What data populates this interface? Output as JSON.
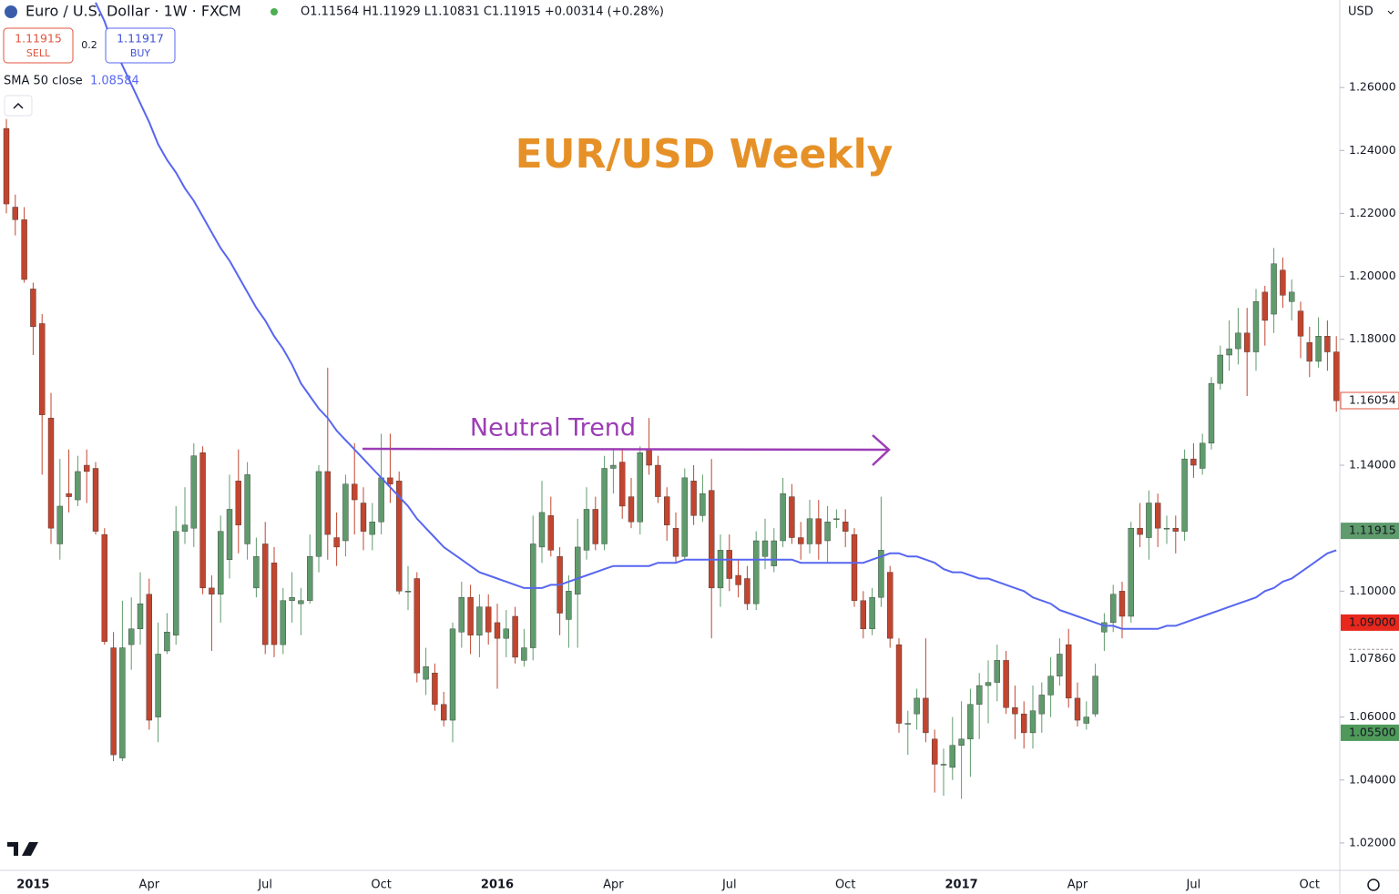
{
  "chart_data": {
    "type": "candlestick",
    "symbol": "Euro / U.S. Dollar · 1W · FXCM",
    "ohlc_text": "O1.11564 H1.11929 L1.10831 C1.11915 +0.00314 (+0.28%)",
    "trade": {
      "sell_price": 1.11915,
      "sell_label": "SELL",
      "spread": 0.2,
      "buy_price": 1.11917,
      "buy_label": "BUY"
    },
    "currency": "USD",
    "title": "EUR/USD Weekly",
    "annotation": "Neutral Trend",
    "up_color": "#5f9b6c",
    "down_color": "#c2452f",
    "grid": false,
    "ylim": [
      1.0113,
      1.2878
    ],
    "yticks": [
      {
        "value": 1.02,
        "label": "1.02000"
      },
      {
        "value": 1.04,
        "label": "1.04000"
      },
      {
        "value": 1.06,
        "label": "1.06000"
      },
      {
        "value": 1.1,
        "label": "1.10000"
      },
      {
        "value": 1.14,
        "label": "1.14000"
      },
      {
        "value": 1.18,
        "label": "1.18000"
      },
      {
        "value": 1.2,
        "label": "1.20000"
      },
      {
        "value": 1.22,
        "label": "1.22000"
      },
      {
        "value": 1.24,
        "label": "1.24000"
      },
      {
        "value": 1.26,
        "label": "1.26000"
      }
    ],
    "price_labels": [
      {
        "value": 1.16054,
        "label": "1.16054",
        "style": "outline",
        "color": "#e0533c"
      },
      {
        "value": 1.11915,
        "label": "1.11915",
        "style": "fill",
        "color": "#5f9b6c"
      },
      {
        "value": 1.09,
        "label": "1.09000",
        "style": "fill",
        "color": "#e8281d"
      },
      {
        "value": 1.0786,
        "label": "1.07860",
        "style": "plain",
        "color": "#131722"
      },
      {
        "value": 1.055,
        "label": "1.05500",
        "style": "fill",
        "color": "#4f9a5a"
      }
    ],
    "categories": [
      null,
      null,
      null,
      "2015",
      null,
      null,
      null,
      null,
      null,
      null,
      null,
      null,
      null,
      null,
      null,
      null,
      "Apr",
      null,
      null,
      null,
      null,
      null,
      null,
      null,
      null,
      null,
      null,
      null,
      null,
      "Jul",
      null,
      null,
      null,
      null,
      null,
      null,
      null,
      null,
      null,
      null,
      null,
      null,
      "Oct",
      null,
      null,
      null,
      null,
      null,
      null,
      null,
      null,
      null,
      null,
      null,
      null,
      "2016",
      null,
      null,
      null,
      null,
      null,
      null,
      null,
      null,
      null,
      null,
      null,
      null,
      "Apr",
      null,
      null,
      null,
      null,
      null,
      null,
      null,
      null,
      null,
      null,
      null,
      null,
      "Jul",
      null,
      null,
      null,
      null,
      null,
      null,
      null,
      null,
      null,
      null,
      null,
      null,
      "Oct",
      null,
      null,
      null,
      null,
      null,
      null,
      null,
      null,
      null,
      null,
      null,
      null,
      "2017",
      null,
      null,
      null,
      null,
      null,
      null,
      null,
      null,
      null,
      null,
      null,
      null,
      "Apr",
      null,
      null,
      null,
      null,
      null,
      null,
      null,
      null,
      null,
      null,
      null,
      null,
      "Jul",
      null,
      null,
      null,
      null,
      null,
      null,
      null,
      null,
      null,
      null,
      null,
      null,
      "Oct",
      null,
      null,
      null
    ],
    "open": [
      1.247,
      1.222,
      1.218,
      1.196,
      1.185,
      1.155,
      1.115,
      1.131,
      1.129,
      1.14,
      1.139,
      1.118,
      1.082,
      1.047,
      1.083,
      1.088,
      1.099,
      1.06,
      1.081,
      1.086,
      1.119,
      1.12,
      1.144,
      1.101,
      1.099,
      1.11,
      1.135,
      1.115,
      1.101,
      1.115,
      1.109,
      1.083,
      1.097,
      1.096,
      1.097,
      1.111,
      1.138,
      1.117,
      1.116,
      1.134,
      1.128,
      1.118,
      1.122,
      1.136,
      1.135,
      1.1,
      1.104,
      1.072,
      1.074,
      1.064,
      1.059,
      1.087,
      1.098,
      1.086,
      1.095,
      1.09,
      1.085,
      1.092,
      1.078,
      1.082,
      1.114,
      1.124,
      1.111,
      1.091,
      1.099,
      1.113,
      1.126,
      1.115,
      1.139,
      1.141,
      1.13,
      1.122,
      1.145,
      1.14,
      1.13,
      1.12,
      1.111,
      1.135,
      1.124,
      1.132,
      1.101,
      1.113,
      1.105,
      1.104,
      1.096,
      1.111,
      1.108,
      1.116,
      1.13,
      1.117,
      1.115,
      1.123,
      1.116,
      1.123,
      1.122,
      1.118,
      1.097,
      1.088,
      1.098,
      1.106,
      1.083,
      1.058,
      1.061,
      1.066,
      1.053,
      1.045,
      1.044,
      1.051,
      1.053,
      1.064,
      1.07,
      1.071,
      1.078,
      1.063,
      1.061,
      1.055,
      1.061,
      1.067,
      1.073,
      1.083,
      1.066,
      1.058,
      1.061,
      1.087,
      1.09,
      1.1,
      1.092,
      1.12,
      1.117,
      1.128,
      1.12,
      1.12,
      1.119,
      1.142,
      1.139,
      1.147,
      1.166,
      1.175,
      1.177,
      1.182,
      1.176,
      1.195,
      1.188,
      1.202,
      1.192,
      1.189,
      1.179,
      1.173,
      1.181,
      1.176
    ],
    "high": [
      1.25,
      1.226,
      1.222,
      1.198,
      1.188,
      1.163,
      1.142,
      1.145,
      1.143,
      1.145,
      1.141,
      1.12,
      1.087,
      1.097,
      1.098,
      1.106,
      1.104,
      1.09,
      1.093,
      1.127,
      1.133,
      1.147,
      1.146,
      1.105,
      1.124,
      1.137,
      1.145,
      1.141,
      1.117,
      1.122,
      1.114,
      1.101,
      1.106,
      1.101,
      1.118,
      1.14,
      1.171,
      1.125,
      1.137,
      1.147,
      1.133,
      1.128,
      1.15,
      1.15,
      1.138,
      1.108,
      1.106,
      1.082,
      1.077,
      1.068,
      1.09,
      1.103,
      1.102,
      1.099,
      1.099,
      1.096,
      1.094,
      1.095,
      1.088,
      1.124,
      1.135,
      1.13,
      1.114,
      1.105,
      1.123,
      1.133,
      1.13,
      1.143,
      1.145,
      1.145,
      1.136,
      1.146,
      1.155,
      1.143,
      1.133,
      1.125,
      1.139,
      1.14,
      1.137,
      1.142,
      1.118,
      1.118,
      1.11,
      1.108,
      1.119,
      1.123,
      1.12,
      1.136,
      1.134,
      1.122,
      1.129,
      1.129,
      1.127,
      1.126,
      1.126,
      1.12,
      1.1,
      1.101,
      1.13,
      1.108,
      1.085,
      1.062,
      1.069,
      1.085,
      1.056,
      1.05,
      1.06,
      1.065,
      1.069,
      1.074,
      1.078,
      1.083,
      1.081,
      1.07,
      1.065,
      1.07,
      1.071,
      1.079,
      1.085,
      1.088,
      1.071,
      1.065,
      1.077,
      1.093,
      1.102,
      1.103,
      1.122,
      1.128,
      1.132,
      1.131,
      1.124,
      1.124,
      1.145,
      1.147,
      1.15,
      1.168,
      1.178,
      1.186,
      1.19,
      1.19,
      1.196,
      1.197,
      1.209,
      1.206,
      1.199,
      1.192,
      1.184,
      1.187,
      1.186,
      1.181
    ],
    "low": [
      1.22,
      1.213,
      1.198,
      1.175,
      1.137,
      1.115,
      1.11,
      1.125,
      1.127,
      1.128,
      1.118,
      1.083,
      1.046,
      1.046,
      1.075,
      1.083,
      1.056,
      1.052,
      1.08,
      1.083,
      1.115,
      1.114,
      1.099,
      1.081,
      1.09,
      1.104,
      1.112,
      1.11,
      1.098,
      1.08,
      1.079,
      1.08,
      1.09,
      1.086,
      1.096,
      1.106,
      1.11,
      1.108,
      1.111,
      1.118,
      1.113,
      1.113,
      1.118,
      1.128,
      1.099,
      1.094,
      1.071,
      1.067,
      1.062,
      1.057,
      1.052,
      1.082,
      1.08,
      1.079,
      1.083,
      1.069,
      1.079,
      1.077,
      1.076,
      1.078,
      1.109,
      1.111,
      1.086,
      1.082,
      1.082,
      1.11,
      1.113,
      1.113,
      1.131,
      1.123,
      1.12,
      1.118,
      1.137,
      1.128,
      1.116,
      1.109,
      1.11,
      1.121,
      1.122,
      1.085,
      1.095,
      1.1,
      1.098,
      1.094,
      1.094,
      1.107,
      1.106,
      1.114,
      1.115,
      1.11,
      1.112,
      1.11,
      1.109,
      1.12,
      1.114,
      1.095,
      1.085,
      1.086,
      1.095,
      1.082,
      1.055,
      1.048,
      1.056,
      1.052,
      1.036,
      1.035,
      1.04,
      1.034,
      1.041,
      1.053,
      1.058,
      1.065,
      1.061,
      1.053,
      1.05,
      1.05,
      1.055,
      1.06,
      1.07,
      1.063,
      1.057,
      1.056,
      1.06,
      1.081,
      1.087,
      1.085,
      1.09,
      1.114,
      1.11,
      1.114,
      1.115,
      1.112,
      1.116,
      1.136,
      1.137,
      1.145,
      1.164,
      1.17,
      1.172,
      1.162,
      1.17,
      1.178,
      1.182,
      1.19,
      1.186,
      1.174,
      1.168,
      1.171,
      1.17,
      1.157
    ],
    "close": [
      1.223,
      1.218,
      1.199,
      1.184,
      1.156,
      1.12,
      1.127,
      1.13,
      1.138,
      1.138,
      1.119,
      1.084,
      1.048,
      1.082,
      1.088,
      1.096,
      1.059,
      1.08,
      1.087,
      1.119,
      1.121,
      1.143,
      1.101,
      1.099,
      1.119,
      1.126,
      1.121,
      1.137,
      1.111,
      1.083,
      1.083,
      1.097,
      1.098,
      1.097,
      1.111,
      1.138,
      1.118,
      1.114,
      1.134,
      1.129,
      1.119,
      1.122,
      1.136,
      1.134,
      1.1,
      1.1,
      1.074,
      1.076,
      1.064,
      1.059,
      1.088,
      1.098,
      1.086,
      1.095,
      1.087,
      1.085,
      1.088,
      1.079,
      1.082,
      1.115,
      1.125,
      1.113,
      1.093,
      1.1,
      1.114,
      1.126,
      1.115,
      1.139,
      1.14,
      1.127,
      1.122,
      1.144,
      1.14,
      1.13,
      1.121,
      1.111,
      1.136,
      1.124,
      1.131,
      1.101,
      1.113,
      1.104,
      1.102,
      1.096,
      1.116,
      1.116,
      1.116,
      1.131,
      1.117,
      1.115,
      1.123,
      1.115,
      1.122,
      1.123,
      1.119,
      1.097,
      1.088,
      1.098,
      1.113,
      1.085,
      1.058,
      1.058,
      1.066,
      1.055,
      1.045,
      1.045,
      1.051,
      1.053,
      1.064,
      1.07,
      1.071,
      1.078,
      1.063,
      1.061,
      1.055,
      1.062,
      1.067,
      1.073,
      1.08,
      1.066,
      1.059,
      1.06,
      1.073,
      1.09,
      1.099,
      1.092,
      1.12,
      1.118,
      1.128,
      1.12,
      1.12,
      1.119,
      1.142,
      1.14,
      1.147,
      1.166,
      1.175,
      1.177,
      1.182,
      1.176,
      1.192,
      1.186,
      1.204,
      1.194,
      1.195,
      1.181,
      1.173,
      1.181,
      1.176,
      1.1605
    ],
    "indicator": {
      "name": "SMA 50 close",
      "value": 1.08584,
      "color": "#5766f0",
      "values": [
        null,
        null,
        null,
        null,
        null,
        null,
        null,
        null,
        null,
        null,
        1.287,
        1.281,
        1.273,
        1.267,
        1.261,
        1.255,
        1.249,
        1.242,
        1.237,
        1.233,
        1.228,
        1.224,
        1.219,
        1.214,
        1.209,
        1.205,
        1.2,
        1.195,
        1.19,
        1.186,
        1.181,
        1.177,
        1.172,
        1.166,
        1.162,
        1.158,
        1.155,
        1.151,
        1.148,
        1.145,
        1.142,
        1.139,
        1.136,
        1.133,
        1.13,
        1.127,
        1.123,
        1.12,
        1.117,
        1.114,
        1.112,
        1.11,
        1.108,
        1.106,
        1.105,
        1.104,
        1.103,
        1.102,
        1.101,
        1.101,
        1.101,
        1.102,
        1.102,
        1.103,
        1.104,
        1.105,
        1.106,
        1.107,
        1.108,
        1.108,
        1.108,
        1.108,
        1.108,
        1.109,
        1.109,
        1.109,
        1.11,
        1.11,
        1.11,
        1.11,
        1.11,
        1.11,
        1.11,
        1.11,
        1.11,
        1.11,
        1.11,
        1.11,
        1.11,
        1.109,
        1.109,
        1.109,
        1.109,
        1.109,
        1.109,
        1.109,
        1.109,
        1.11,
        1.111,
        1.112,
        1.112,
        1.111,
        1.111,
        1.11,
        1.109,
        1.107,
        1.106,
        1.106,
        1.105,
        1.104,
        1.104,
        1.103,
        1.102,
        1.101,
        1.1,
        1.098,
        1.097,
        1.096,
        1.094,
        1.093,
        1.092,
        1.091,
        1.09,
        1.089,
        1.089,
        1.088,
        1.088,
        1.088,
        1.088,
        1.088,
        1.089,
        1.089,
        1.09,
        1.091,
        1.092,
        1.093,
        1.094,
        1.095,
        1.096,
        1.097,
        1.098,
        1.1,
        1.101,
        1.103,
        1.104,
        1.106,
        1.108,
        1.11,
        1.112,
        1.113
      ]
    }
  }
}
